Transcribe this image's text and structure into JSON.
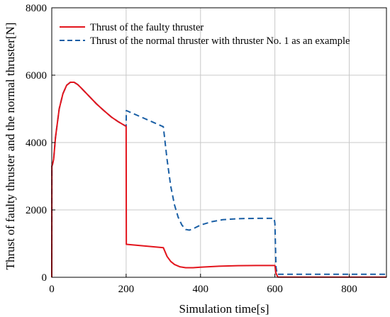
{
  "chart_data": {
    "type": "line",
    "xlabel": "Simulation time[s]",
    "ylabel": "Thrust of faulty thruster and the normal thruster[N]",
    "xlim": [
      0,
      900
    ],
    "ylim": [
      0,
      8000
    ],
    "xticks": [
      0,
      200,
      400,
      600,
      800
    ],
    "yticks": [
      0,
      2000,
      4000,
      6000,
      8000
    ],
    "grid": true,
    "legend_position": "top-left",
    "series": [
      {
        "name": "Thrust of the faulty thruster",
        "color": "#e3151d",
        "style": "solid",
        "points": [
          [
            0,
            0
          ],
          [
            0.3,
            3300
          ],
          [
            2,
            3350
          ],
          [
            5,
            3500
          ],
          [
            10,
            4150
          ],
          [
            20,
            5000
          ],
          [
            30,
            5450
          ],
          [
            40,
            5700
          ],
          [
            50,
            5790
          ],
          [
            60,
            5790
          ],
          [
            70,
            5720
          ],
          [
            80,
            5610
          ],
          [
            100,
            5380
          ],
          [
            120,
            5150
          ],
          [
            140,
            4950
          ],
          [
            160,
            4760
          ],
          [
            180,
            4610
          ],
          [
            200,
            4480
          ],
          [
            200.5,
            980
          ],
          [
            300,
            880
          ],
          [
            310,
            620
          ],
          [
            320,
            470
          ],
          [
            330,
            380
          ],
          [
            345,
            310
          ],
          [
            360,
            285
          ],
          [
            380,
            285
          ],
          [
            400,
            300
          ],
          [
            450,
            330
          ],
          [
            500,
            345
          ],
          [
            550,
            350
          ],
          [
            600,
            350
          ],
          [
            603,
            120
          ],
          [
            608,
            5
          ],
          [
            900,
            5
          ]
        ]
      },
      {
        "name": "Thrust of the normal thruster with thruster No. 1 as an example",
        "color": "#1a5fa5",
        "style": "dashed",
        "points": [
          [
            0,
            0
          ],
          [
            0.3,
            3300
          ],
          [
            2,
            3350
          ],
          [
            5,
            3500
          ],
          [
            10,
            4150
          ],
          [
            20,
            5000
          ],
          [
            30,
            5450
          ],
          [
            40,
            5700
          ],
          [
            50,
            5790
          ],
          [
            60,
            5790
          ],
          [
            70,
            5720
          ],
          [
            80,
            5610
          ],
          [
            100,
            5380
          ],
          [
            120,
            5150
          ],
          [
            140,
            4950
          ],
          [
            160,
            4760
          ],
          [
            180,
            4610
          ],
          [
            200,
            4480
          ],
          [
            200.5,
            4950
          ],
          [
            300,
            4470
          ],
          [
            310,
            3500
          ],
          [
            320,
            2700
          ],
          [
            330,
            2150
          ],
          [
            340,
            1780
          ],
          [
            350,
            1550
          ],
          [
            360,
            1420
          ],
          [
            370,
            1400
          ],
          [
            380,
            1440
          ],
          [
            400,
            1550
          ],
          [
            430,
            1650
          ],
          [
            460,
            1710
          ],
          [
            500,
            1740
          ],
          [
            550,
            1750
          ],
          [
            598,
            1750
          ],
          [
            600,
            1600
          ],
          [
            603,
            300
          ],
          [
            606,
            90
          ],
          [
            900,
            90
          ]
        ]
      }
    ]
  }
}
